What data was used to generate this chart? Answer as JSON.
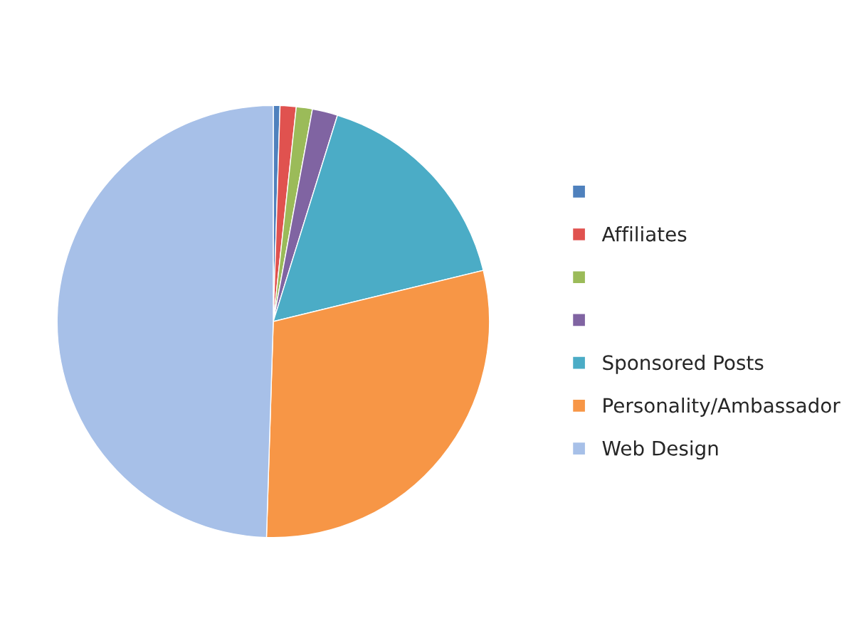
{
  "chart_data": {
    "type": "pie",
    "categories": [
      null,
      "Affiliates",
      null,
      null,
      "Sponsored Posts",
      "Personality/Ambassador",
      "Web Design"
    ],
    "values": [
      0.5,
      1.2,
      1.2,
      1.9,
      16.4,
      29.3,
      49.5
    ],
    "colors": [
      "#4f81bd",
      "#e0524f",
      "#9bbb59",
      "#8064a2",
      "#4bacc6",
      "#f79646",
      "#a7c0e8"
    ],
    "legend": "right"
  }
}
